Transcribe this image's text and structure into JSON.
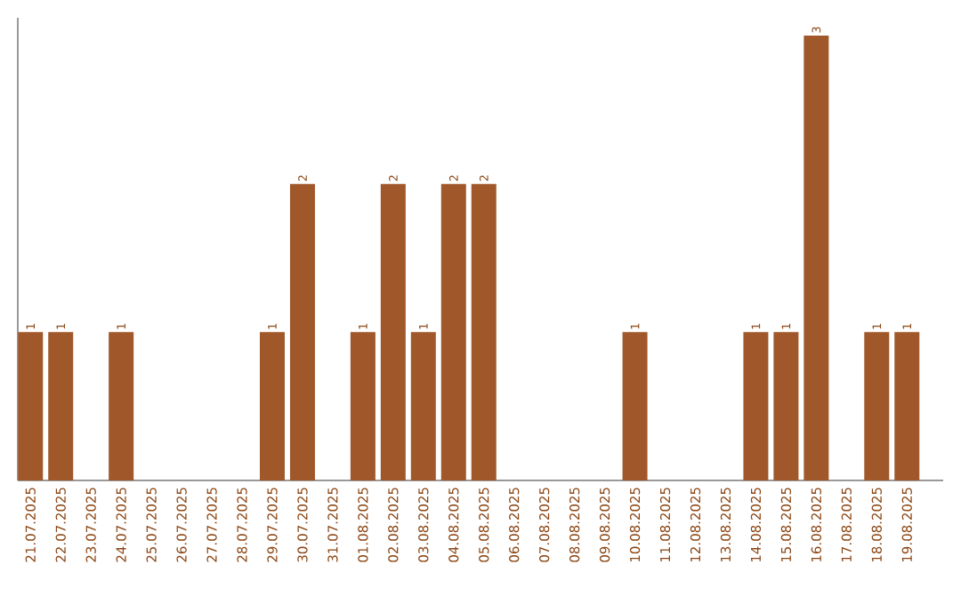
{
  "chart_data": {
    "type": "bar",
    "categories": [
      "21.07.2025",
      "22.07.2025",
      "23.07.2025",
      "24.07.2025",
      "25.07.2025",
      "26.07.2025",
      "27.07.2025",
      "28.07.2025",
      "29.07.2025",
      "30.07.2025",
      "31.07.2025",
      "01.08.2025",
      "02.08.2025",
      "03.08.2025",
      "04.08.2025",
      "05.08.2025",
      "06.08.2025",
      "07.08.2025",
      "08.08.2025",
      "09.08.2025",
      "10.08.2025",
      "11.08.2025",
      "12.08.2025",
      "13.08.2025",
      "14.08.2025",
      "15.08.2025",
      "16.08.2025",
      "17.08.2025",
      "18.08.2025",
      "19.08.2025"
    ],
    "values": [
      1,
      1,
      null,
      1,
      null,
      null,
      null,
      null,
      1,
      2,
      null,
      1,
      2,
      1,
      2,
      2,
      null,
      null,
      null,
      null,
      1,
      null,
      null,
      null,
      1,
      1,
      3,
      null,
      1,
      1
    ],
    "color": "#a0582a",
    "data_labels": true,
    "tick_labels": "x"
  }
}
